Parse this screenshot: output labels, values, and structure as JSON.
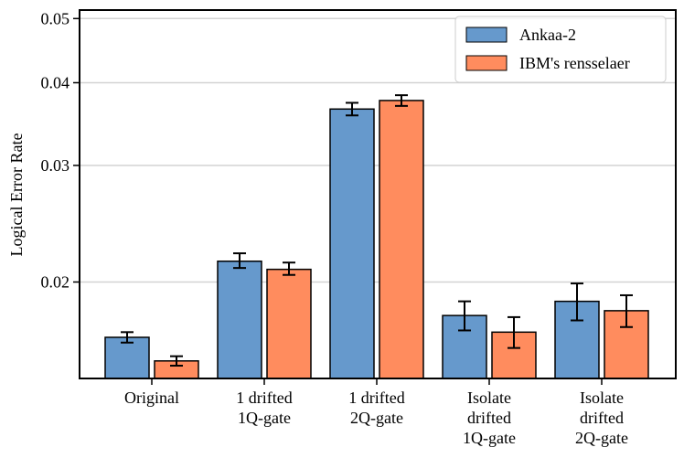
{
  "chart_data": {
    "type": "bar",
    "title": "",
    "xlabel": "",
    "ylabel": "Logical Error Rate",
    "yscale": "log",
    "ylim": [
      0.0143,
      0.0515
    ],
    "yticks": [
      0.02,
      0.03,
      0.04,
      0.05
    ],
    "ytick_labels": [
      "0.02",
      "0.03",
      "0.04",
      "0.05"
    ],
    "grid": "horizontal",
    "legend_position": "top-right",
    "categories": [
      [
        "Original"
      ],
      [
        "1 drifted",
        "1Q-gate"
      ],
      [
        "1 drifted",
        "2Q-gate"
      ],
      [
        "Isolate",
        "drifted",
        "1Q-gate"
      ],
      [
        "Isolate",
        "drifted",
        "2Q-gate"
      ]
    ],
    "series": [
      {
        "name": "Ankaa-2",
        "color": "#6699CC",
        "values": [
          0.0165,
          0.0215,
          0.0365,
          0.0178,
          0.0187
        ],
        "err_low": [
          0.0003,
          0.0005,
          0.0008,
          0.0009,
          0.0012
        ],
        "err_high": [
          0.0003,
          0.0006,
          0.0008,
          0.0009,
          0.0012
        ]
      },
      {
        "name": "IBM's rensselaer",
        "color": "#FF8C5E",
        "values": [
          0.0152,
          0.0209,
          0.0376,
          0.0168,
          0.0181
        ],
        "err_low": [
          0.00025,
          0.0004,
          0.0007,
          0.0009,
          0.001
        ],
        "err_high": [
          0.00025,
          0.0005,
          0.0007,
          0.0009,
          0.001
        ]
      }
    ]
  }
}
